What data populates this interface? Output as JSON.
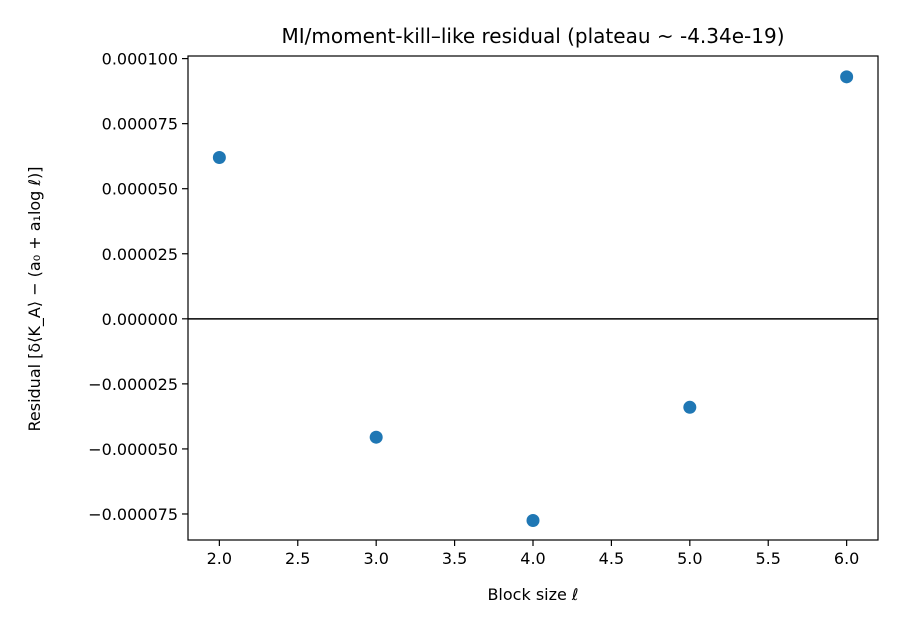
{
  "chart_data": {
    "type": "scatter",
    "title": "MI/moment-kill–like residual (plateau ~ -4.34e-19)",
    "xlabel": "Block size ℓ",
    "ylabel": "Residual [δ⟨K_A⟩ − (a₀ + a₁log ℓ)]",
    "xlim": [
      1.8,
      6.2
    ],
    "ylim": [
      -8.5e-05,
      0.000101
    ],
    "xticks": [
      2.0,
      2.5,
      3.0,
      3.5,
      4.0,
      4.5,
      5.0,
      5.5,
      6.0
    ],
    "xtick_labels": [
      "2.0",
      "2.5",
      "3.0",
      "3.5",
      "4.0",
      "4.5",
      "5.0",
      "5.5",
      "6.0"
    ],
    "yticks": [
      -7.5e-05,
      -5e-05,
      -2.5e-05,
      0,
      2.5e-05,
      5e-05,
      7.5e-05,
      0.0001
    ],
    "ytick_labels": [
      "−0.000075",
      "−0.000050",
      "−0.000025",
      "0.000000",
      "0.000025",
      "0.000050",
      "0.000075",
      "0.000100"
    ],
    "hline": 0,
    "grid": false,
    "color": "#1f77b4",
    "x": [
      2,
      3,
      4,
      5,
      6
    ],
    "y": [
      6.2e-05,
      -4.55e-05,
      -7.75e-05,
      -3.4e-05,
      9.3e-05
    ]
  }
}
